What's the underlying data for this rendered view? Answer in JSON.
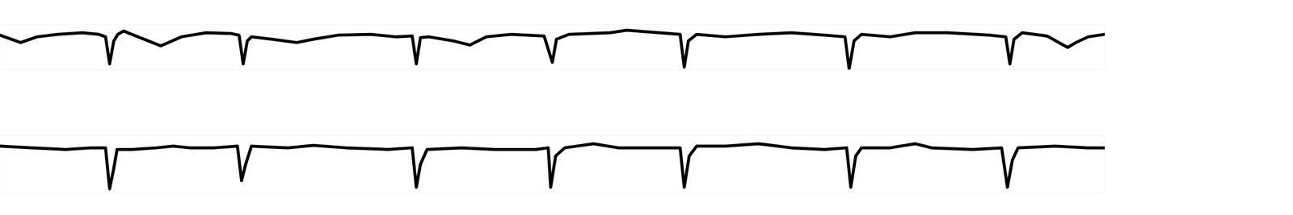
{
  "chart_data": [
    {
      "type": "line",
      "color": "#000000",
      "tick_labels": false,
      "xlim": [
        0,
        1340
      ],
      "ylim": [
        -40,
        15
      ],
      "x": [
        0,
        25,
        45,
        70,
        100,
        120,
        128,
        133,
        138,
        143,
        150,
        160,
        180,
        195,
        220,
        250,
        280,
        290,
        295,
        300,
        305,
        330,
        360,
        380,
        410,
        450,
        480,
        500,
        505,
        510,
        520,
        550,
        570,
        590,
        620,
        660,
        670,
        675,
        690,
        740,
        760,
        800,
        825,
        830,
        835,
        845,
        880,
        920,
        960,
        1000,
        1025,
        1030,
        1036,
        1045,
        1080,
        1110,
        1150,
        1200,
        1220,
        1225,
        1230,
        1240,
        1270,
        1295,
        1305,
        1320,
        1340
      ],
      "values": [
        2,
        -7,
        0,
        3,
        5,
        3,
        0,
        -33,
        -5,
        3,
        7,
        3,
        -5,
        -11,
        0,
        5,
        4,
        2,
        -33,
        -5,
        0,
        -3,
        -7,
        -3,
        2,
        3,
        0,
        1,
        -33,
        -1,
        0,
        -5,
        -10,
        0,
        3,
        1,
        -31,
        -3,
        3,
        5,
        8,
        5,
        3,
        -37,
        -5,
        3,
        0,
        3,
        5,
        2,
        0,
        -39,
        -5,
        3,
        0,
        5,
        5,
        2,
        0,
        -33,
        -3,
        5,
        1,
        -13,
        -7,
        0,
        3
      ]
    },
    {
      "type": "line",
      "color": "#000000",
      "tick_labels": false,
      "xlim": [
        0,
        1340
      ],
      "ylim": [
        -55,
        15
      ],
      "x": [
        0,
        40,
        80,
        110,
        128,
        133,
        138,
        142,
        160,
        190,
        210,
        230,
        260,
        288,
        293,
        298,
        305,
        350,
        380,
        420,
        470,
        500,
        505,
        510,
        518,
        560,
        600,
        650,
        665,
        668,
        674,
        685,
        720,
        750,
        800,
        825,
        830,
        836,
        845,
        880,
        920,
        960,
        1000,
        1027,
        1032,
        1038,
        1045,
        1080,
        1110,
        1130,
        1180,
        1215,
        1222,
        1228,
        1235,
        1280,
        1320,
        1340
      ],
      "values": [
        2,
        0,
        -2,
        0,
        0,
        -50,
        -25,
        -2,
        -2,
        0,
        2,
        0,
        0,
        2,
        -40,
        -20,
        2,
        0,
        3,
        0,
        -2,
        0,
        -48,
        -20,
        -2,
        0,
        -2,
        -2,
        0,
        -48,
        -10,
        0,
        5,
        0,
        0,
        0,
        -48,
        -10,
        2,
        2,
        5,
        0,
        -2,
        0,
        -48,
        -10,
        0,
        0,
        5,
        0,
        -2,
        0,
        -48,
        -15,
        0,
        2,
        0,
        0
      ]
    }
  ]
}
